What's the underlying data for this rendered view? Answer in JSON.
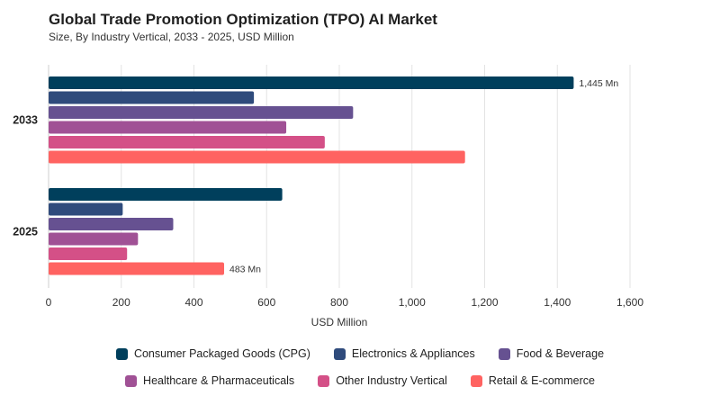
{
  "title": "Global Trade Promotion Optimization (TPO) AI Market",
  "subtitle": "Size, By Industry Vertical, 2033 - 2025, USD Million",
  "chart_data": {
    "type": "bar",
    "orientation": "horizontal",
    "categories": [
      "2033",
      "2025"
    ],
    "series": [
      {
        "name": "Consumer Packaged Goods (CPG)",
        "color": "#003f5c",
        "values": [
          1445,
          643
        ]
      },
      {
        "name": "Electronics & Appliances",
        "color": "#2f4b7c",
        "values": [
          565,
          204
        ]
      },
      {
        "name": "Food & Beverage",
        "color": "#665191",
        "values": [
          838,
          343
        ]
      },
      {
        "name": "Healthcare & Pharmaceuticals",
        "color": "#a05195",
        "values": [
          654,
          246
        ]
      },
      {
        "name": "Other Industry Vertical",
        "color": "#d45087",
        "values": [
          760,
          216
        ]
      },
      {
        "name": "Retail & E-commerce",
        "color": "#ff6361",
        "values": [
          1146,
          483
        ]
      }
    ],
    "data_labels": [
      {
        "category": "2033",
        "series": "Consumer Packaged Goods (CPG)",
        "text": "1,445 Mn"
      },
      {
        "category": "2025",
        "series": "Retail & E-commerce",
        "text": "483 Mn"
      }
    ],
    "xlabel": "USD Million",
    "xlim": [
      0,
      1600
    ],
    "xticks": [
      0,
      200,
      400,
      600,
      800,
      1000,
      1200,
      1400,
      1600
    ],
    "xtick_labels": [
      "0",
      "200",
      "400",
      "600",
      "800",
      "1,000",
      "1,200",
      "1,400",
      "1,600"
    ],
    "legend_position": "bottom",
    "grid": "vertical"
  }
}
